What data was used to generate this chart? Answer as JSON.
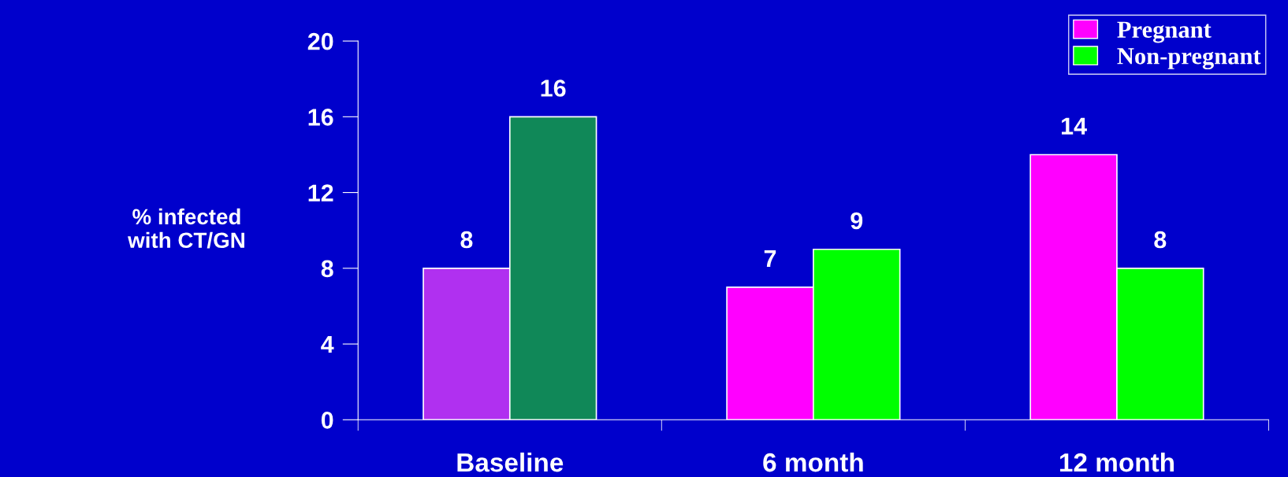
{
  "chart_data": {
    "type": "bar",
    "ylabel": "% infected\nwith CT/GN",
    "categories": [
      "Baseline",
      "6 month",
      "12 month"
    ],
    "series": [
      {
        "name": "Pregnant",
        "color": "#ff00ff",
        "colors": [
          "#b030f0",
          "#ff00ff",
          "#ff00ff"
        ],
        "values": [
          8,
          7,
          14
        ]
      },
      {
        "name": "Non-pregnant",
        "color": "#00ff00",
        "colors": [
          "#108858",
          "#00ff00",
          "#00ff00"
        ],
        "values": [
          16,
          9,
          8
        ]
      }
    ],
    "ylim": [
      0,
      20
    ],
    "yticks": [
      0,
      4,
      8,
      12,
      16,
      20
    ],
    "data_labels": true,
    "legend": "top right",
    "grid": false
  }
}
